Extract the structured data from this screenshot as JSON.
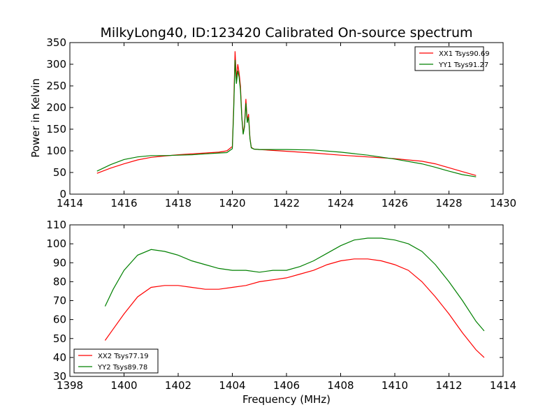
{
  "chart_data": [
    {
      "type": "line",
      "title": "MilkyLong40, ID:123420 Calibrated On-source spectrum",
      "xlabel": "",
      "ylabel": "Power in Kelvin",
      "xlim": [
        1414,
        1430
      ],
      "ylim": [
        0,
        350
      ],
      "xticks": [
        "1414",
        "1416",
        "1418",
        "1420",
        "1422",
        "1424",
        "1426",
        "1428",
        "1430"
      ],
      "yticks": [
        "0",
        "50",
        "100",
        "150",
        "200",
        "250",
        "300",
        "350"
      ],
      "legend_position": "top-right",
      "series": [
        {
          "name": "XX1 Tsys90.69",
          "color": "#ff0000",
          "x": [
            1415.0,
            1415.5,
            1416.0,
            1416.5,
            1417.0,
            1417.5,
            1418.0,
            1418.5,
            1419.0,
            1419.5,
            1419.8,
            1420.0,
            1420.05,
            1420.1,
            1420.15,
            1420.2,
            1420.25,
            1420.3,
            1420.35,
            1420.4,
            1420.45,
            1420.5,
            1420.55,
            1420.6,
            1420.65,
            1420.7,
            1420.8,
            1421.0,
            1421.5,
            1422.0,
            1423.0,
            1424.0,
            1425.0,
            1426.0,
            1427.0,
            1427.5,
            1428.0,
            1428.5,
            1429.0
          ],
          "y": [
            48,
            60,
            70,
            79,
            85,
            88,
            91,
            93,
            95,
            97,
            100,
            110,
            200,
            330,
            265,
            300,
            280,
            250,
            180,
            140,
            160,
            220,
            170,
            185,
            130,
            108,
            104,
            103,
            101,
            99,
            95,
            90,
            86,
            82,
            76,
            70,
            61,
            52,
            43
          ]
        },
        {
          "name": "YY1 Tsys91.27",
          "color": "#008000",
          "x": [
            1415.0,
            1415.5,
            1416.0,
            1416.5,
            1417.0,
            1417.5,
            1418.0,
            1418.5,
            1419.0,
            1419.5,
            1419.8,
            1420.0,
            1420.05,
            1420.1,
            1420.15,
            1420.2,
            1420.25,
            1420.3,
            1420.35,
            1420.4,
            1420.45,
            1420.5,
            1420.55,
            1420.6,
            1420.65,
            1420.7,
            1420.8,
            1421.0,
            1421.5,
            1422.0,
            1423.0,
            1424.0,
            1425.0,
            1426.0,
            1427.0,
            1427.5,
            1428.0,
            1428.5,
            1429.0
          ],
          "y": [
            53,
            68,
            80,
            86,
            89,
            89,
            90,
            91,
            93,
            95,
            96,
            105,
            190,
            310,
            255,
            285,
            270,
            240,
            175,
            138,
            155,
            210,
            165,
            178,
            128,
            107,
            104,
            103,
            103,
            103,
            102,
            97,
            90,
            81,
            70,
            62,
            53,
            45,
            40
          ]
        }
      ]
    },
    {
      "type": "line",
      "title": "",
      "xlabel": "Frequency (MHz)",
      "ylabel": "",
      "xlim": [
        1398,
        1414
      ],
      "ylim": [
        30,
        110
      ],
      "xticks": [
        "1398",
        "1400",
        "1402",
        "1404",
        "1406",
        "1408",
        "1410",
        "1412",
        "1414"
      ],
      "yticks": [
        "30",
        "40",
        "50",
        "60",
        "70",
        "80",
        "90",
        "100",
        "110"
      ],
      "legend_position": "bottom-left",
      "series": [
        {
          "name": "XX2 Tsys77.19",
          "color": "#ff0000",
          "x": [
            1399.3,
            1399.6,
            1400.0,
            1400.5,
            1401.0,
            1401.5,
            1402.0,
            1402.5,
            1403.0,
            1403.5,
            1404.0,
            1404.5,
            1405.0,
            1405.5,
            1406.0,
            1406.5,
            1407.0,
            1407.5,
            1408.0,
            1408.5,
            1409.0,
            1409.5,
            1410.0,
            1410.5,
            1411.0,
            1411.5,
            1412.0,
            1412.5,
            1413.0,
            1413.3
          ],
          "y": [
            49,
            55,
            63,
            72,
            77,
            78,
            78,
            77,
            76,
            76,
            77,
            78,
            80,
            81,
            82,
            84,
            86,
            89,
            91,
            92,
            92,
            91,
            89,
            86,
            80,
            72,
            63,
            53,
            44,
            40
          ]
        },
        {
          "name": "YY2 Tsys89.78",
          "color": "#008000",
          "x": [
            1399.3,
            1399.6,
            1400.0,
            1400.5,
            1401.0,
            1401.5,
            1402.0,
            1402.5,
            1403.0,
            1403.5,
            1404.0,
            1404.5,
            1405.0,
            1405.5,
            1406.0,
            1406.5,
            1407.0,
            1407.5,
            1408.0,
            1408.5,
            1409.0,
            1409.5,
            1410.0,
            1410.5,
            1411.0,
            1411.5,
            1412.0,
            1412.5,
            1413.0,
            1413.3
          ],
          "y": [
            67,
            76,
            86,
            94,
            97,
            96,
            94,
            91,
            89,
            87,
            86,
            86,
            85,
            86,
            86,
            88,
            91,
            95,
            99,
            102,
            103,
            103,
            102,
            100,
            96,
            89,
            80,
            70,
            59,
            54
          ]
        }
      ]
    }
  ]
}
